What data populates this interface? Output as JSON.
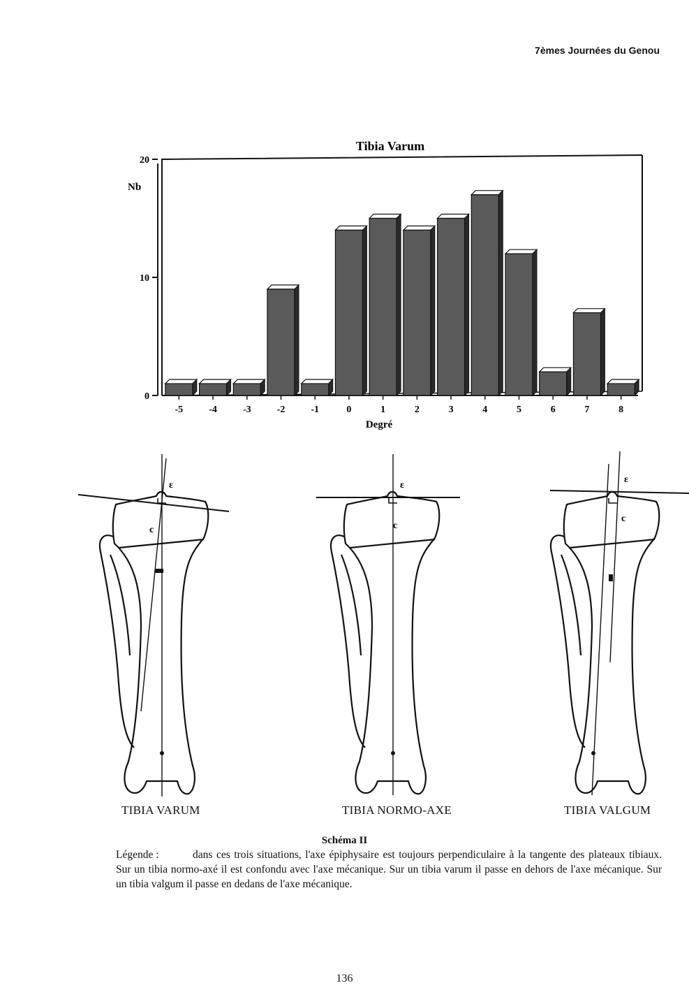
{
  "header": {
    "running_title": "7èmes Journées du Genou"
  },
  "chart_data": {
    "type": "bar",
    "title": "Tibia Varum",
    "xlabel": "Degré",
    "ylabel": "Nb",
    "categories": [
      "-5",
      "-4",
      "-3",
      "-2",
      "-1",
      "0",
      "1",
      "2",
      "3",
      "4",
      "5",
      "6",
      "7",
      "8"
    ],
    "values": [
      1,
      1,
      1,
      9,
      1,
      14,
      15,
      14,
      15,
      17,
      12,
      2,
      7,
      1
    ],
    "ylim": [
      0,
      20
    ],
    "yticks": [
      0,
      10,
      20
    ],
    "grid": false,
    "bar_color": "#5a5a5a",
    "style": "3d"
  },
  "figures": [
    {
      "caption": "TIBIA VARUM",
      "marks": [
        "ε",
        "c"
      ]
    },
    {
      "caption": "TIBIA NORMO-AXE",
      "marks": [
        "ε",
        "c"
      ]
    },
    {
      "caption": "TIBIA VALGUM",
      "marks": [
        "ε",
        "c"
      ]
    }
  ],
  "schema_title": "Schéma II",
  "legend": {
    "label": "Légende :",
    "text": "dans ces trois situations, l'axe épiphysaire est toujours perpendiculaire à la tangente des plateaux tibiaux. Sur un tibia normo-axé il est confondu avec l'axe mécanique. Sur un tibia varum il passe en dehors de l'axe mécanique. Sur un tibia valgum il passe en dedans de l'axe mécanique."
  },
  "page_number": "136"
}
